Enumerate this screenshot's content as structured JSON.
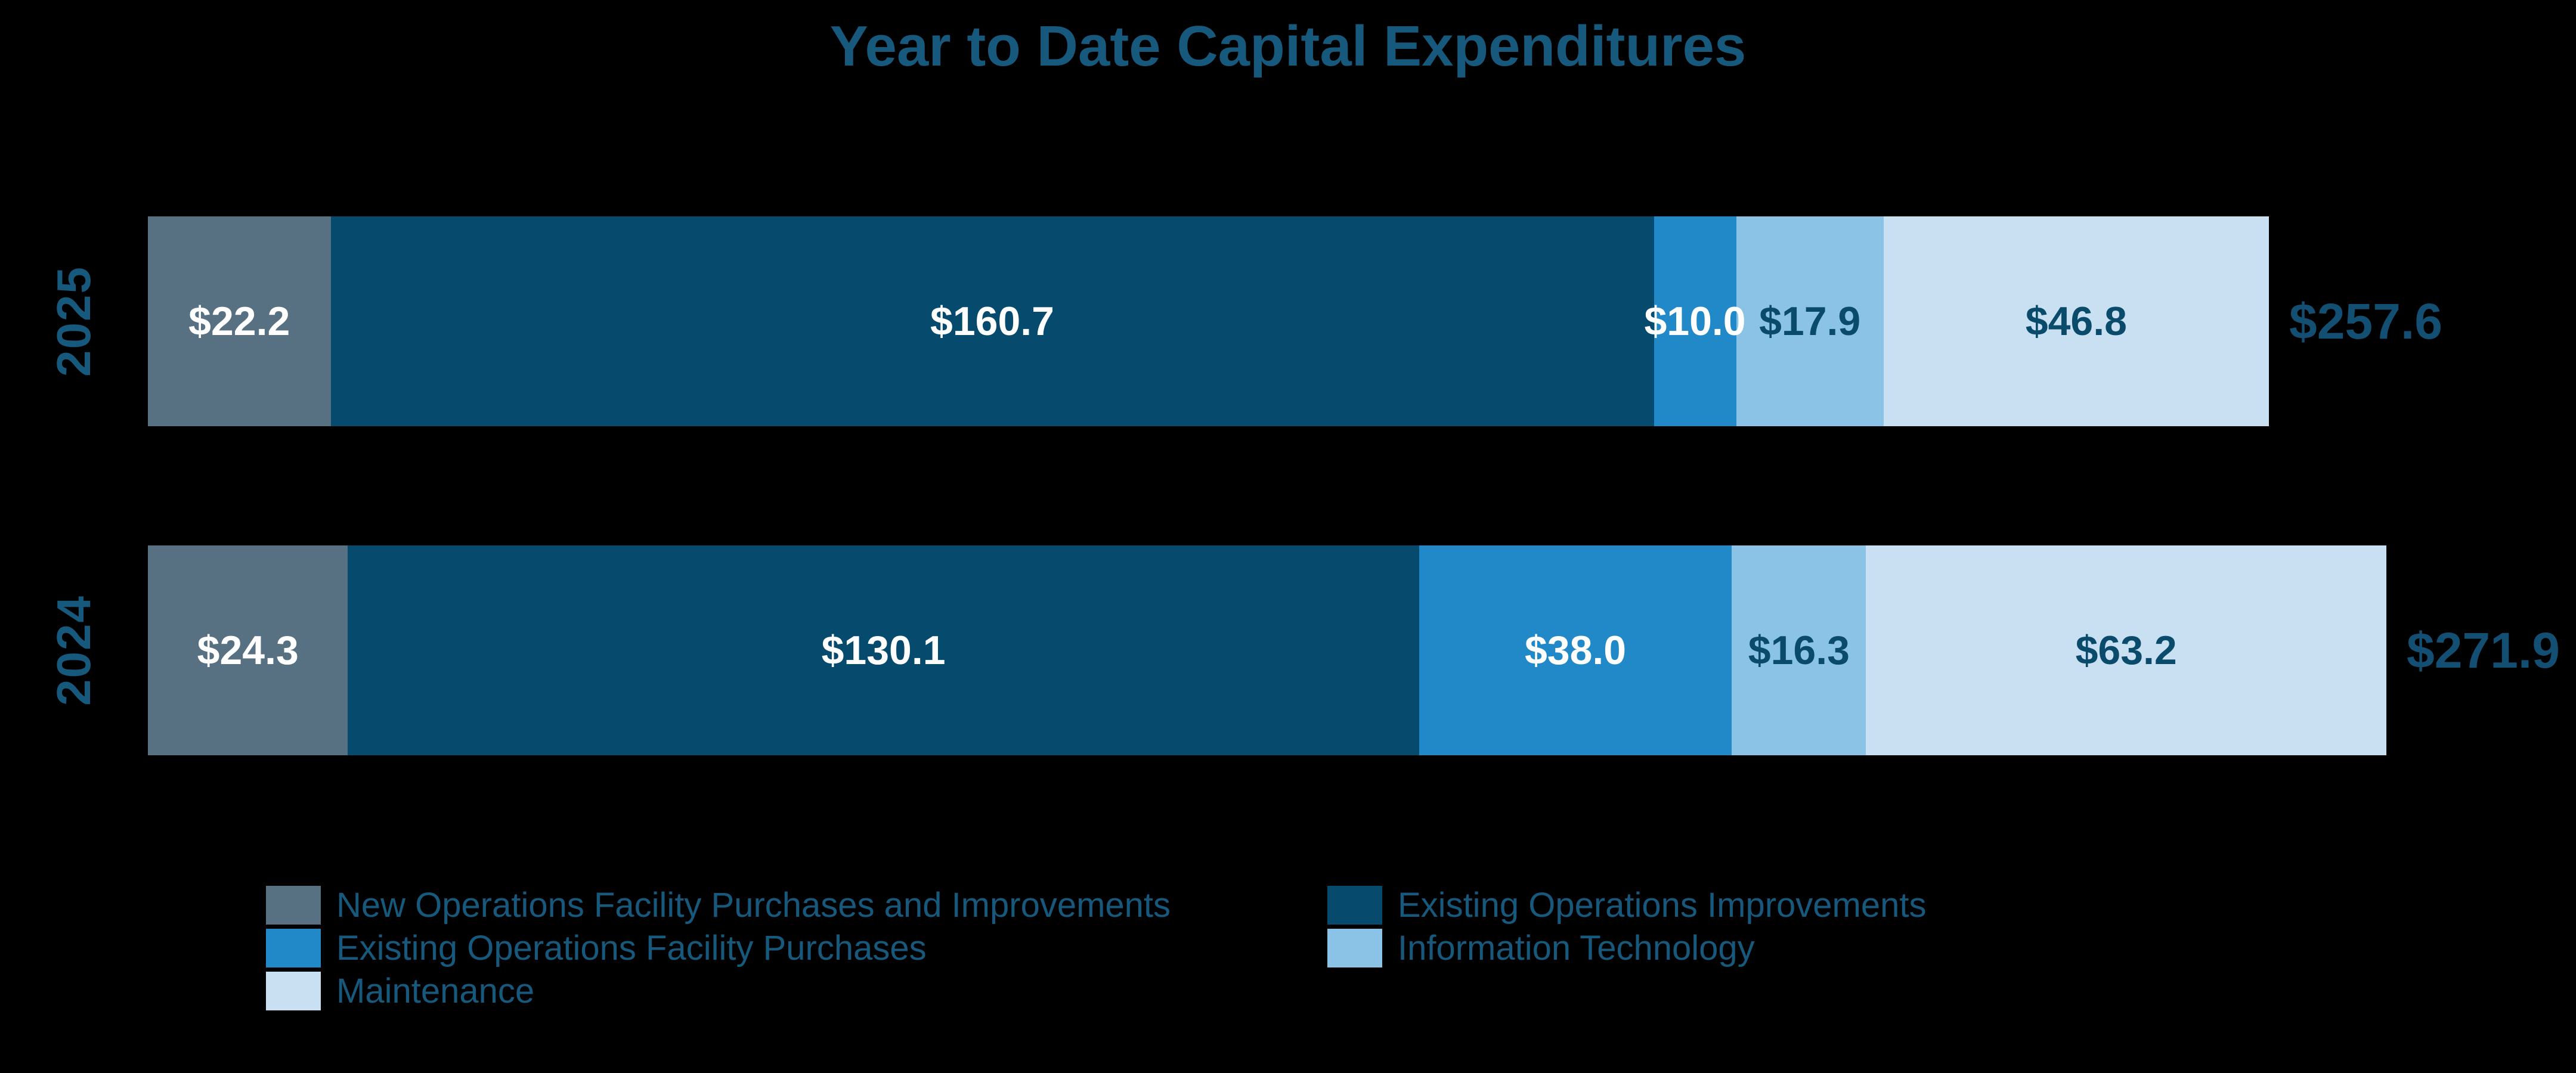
{
  "page": {
    "background_color": "#000000"
  },
  "colors": {
    "title_text": "#17597C",
    "axis_text": "#17597C",
    "total_text": "#134F72",
    "legend_text": "#17597C",
    "label_on_dark": "#FFFFFF",
    "label_on_light": "#0A4A6B"
  },
  "chart_data": {
    "type": "bar",
    "variant": "horizontal-stacked",
    "title": "Year to Date Capital Expenditures",
    "categories": [
      "2025",
      "2024"
    ],
    "series": [
      {
        "name": "New Operations Facility Purchases and Improvements",
        "color": "#587182",
        "label_style": "light",
        "values": [
          22.2,
          24.3
        ]
      },
      {
        "name": "Existing Operations Improvements",
        "color": "#064A6D",
        "label_style": "light",
        "values": [
          160.7,
          130.1
        ]
      },
      {
        "name": "Existing Operations Facility Purchases",
        "color": "#2289C8",
        "label_style": "light",
        "values": [
          10.0,
          38.0
        ]
      },
      {
        "name": "Information Technology",
        "color": "#8BC3E6",
        "label_style": "dark",
        "values": [
          17.9,
          16.3
        ]
      },
      {
        "name": "Maintenance",
        "color": "#C9DFF2",
        "label_style": "dark",
        "values": [
          46.8,
          63.2
        ]
      }
    ],
    "segment_labels": [
      [
        "$22.2",
        "$160.7",
        "$10.0",
        "$17.9",
        "$46.8"
      ],
      [
        "$24.3",
        "$130.1",
        "$38.0",
        "$16.3",
        "$63.2"
      ]
    ],
    "totals": [
      257.6,
      271.9
    ],
    "total_labels": [
      "$257.6",
      "$271.9"
    ],
    "axis_ranges": {
      "value_max": 271.9
    },
    "grid": "off",
    "legend_position": "bottom-left",
    "legend_columns": [
      [
        0,
        2,
        4
      ],
      [
        1,
        3
      ]
    ]
  }
}
